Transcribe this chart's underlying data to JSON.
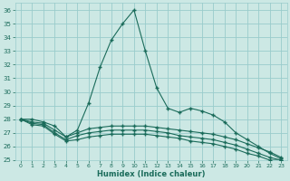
{
  "xlabel": "Humidex (Indice chaleur)",
  "bg_color": "#cce8e4",
  "grid_color": "#99cccc",
  "line_color": "#1a6b5a",
  "xlim": [
    -0.5,
    23.5
  ],
  "ylim": [
    25,
    36.5
  ],
  "yticks": [
    25,
    26,
    27,
    28,
    29,
    30,
    31,
    32,
    33,
    34,
    35,
    36
  ],
  "xticks": [
    0,
    1,
    2,
    3,
    4,
    5,
    6,
    7,
    8,
    9,
    10,
    11,
    12,
    13,
    14,
    15,
    16,
    17,
    18,
    19,
    20,
    21,
    22,
    23
  ],
  "series": [
    {
      "x": [
        0,
        1,
        2,
        3,
        4,
        5,
        6,
        7,
        8,
        9,
        10,
        11,
        12,
        13,
        14,
        15,
        16,
        17,
        18,
        19,
        20,
        21,
        22,
        23
      ],
      "y": [
        28.0,
        28.0,
        27.8,
        27.5,
        26.7,
        27.2,
        29.2,
        31.8,
        33.8,
        35.0,
        36.0,
        33.0,
        30.3,
        28.8,
        28.5,
        28.8,
        28.6,
        28.3,
        27.8,
        27.0,
        26.5,
        26.0,
        25.5,
        25.1
      ]
    },
    {
      "x": [
        0,
        1,
        2,
        3,
        4,
        5,
        6,
        7,
        8,
        9,
        10,
        11,
        12,
        13,
        14,
        15,
        16,
        17,
        18,
        19,
        20,
        21,
        22,
        23
      ],
      "y": [
        28.0,
        27.8,
        27.7,
        27.2,
        26.7,
        27.0,
        27.3,
        27.4,
        27.5,
        27.5,
        27.5,
        27.5,
        27.4,
        27.3,
        27.2,
        27.1,
        27.0,
        26.9,
        26.7,
        26.5,
        26.2,
        25.9,
        25.6,
        25.2
      ]
    },
    {
      "x": [
        0,
        1,
        2,
        3,
        4,
        5,
        6,
        7,
        8,
        9,
        10,
        11,
        12,
        13,
        14,
        15,
        16,
        17,
        18,
        19,
        20,
        21,
        22,
        23
      ],
      "y": [
        28.0,
        27.7,
        27.6,
        27.0,
        26.5,
        26.8,
        27.0,
        27.1,
        27.2,
        27.2,
        27.2,
        27.2,
        27.1,
        27.0,
        26.8,
        26.7,
        26.6,
        26.5,
        26.3,
        26.1,
        25.8,
        25.5,
        25.2,
        25.0
      ]
    },
    {
      "x": [
        0,
        1,
        2,
        3,
        4,
        5,
        6,
        7,
        8,
        9,
        10,
        11,
        12,
        13,
        14,
        15,
        16,
        17,
        18,
        19,
        20,
        21,
        22,
        23
      ],
      "y": [
        28.0,
        27.6,
        27.5,
        26.9,
        26.4,
        26.5,
        26.7,
        26.8,
        26.9,
        26.9,
        26.9,
        26.9,
        26.8,
        26.7,
        26.6,
        26.4,
        26.3,
        26.2,
        26.0,
        25.8,
        25.5,
        25.3,
        25.0,
        25.0
      ]
    }
  ]
}
